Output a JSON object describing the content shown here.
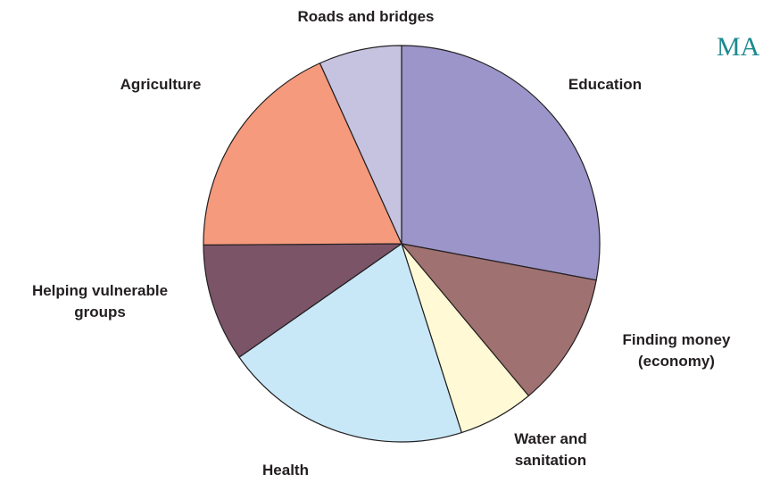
{
  "chart_data": {
    "type": "pie",
    "start_angle_deg": 0,
    "direction": "clockwise",
    "slices": [
      {
        "label": "Education",
        "lines": [
          "Education"
        ],
        "value": 28.5,
        "color": "#9b95c9"
      },
      {
        "label": "Finding money (economy)",
        "lines": [
          "Finding money",
          "(economy)"
        ],
        "value": 11.2,
        "color": "#a07171"
      },
      {
        "label": "Water and sanitation",
        "lines": [
          "Water and",
          "sanitation"
        ],
        "value": 6.3,
        "color": "#fffad5"
      },
      {
        "label": "Health",
        "lines": [
          "Health"
        ],
        "value": 20.6,
        "color": "#c8e8f8"
      },
      {
        "label": "Helping vulnerable groups",
        "lines": [
          "Helping vulnerable",
          "groups"
        ],
        "value": 9.8,
        "color": "#7b5468"
      },
      {
        "label": "Agriculture",
        "lines": [
          "Agriculture"
        ],
        "value": 18.7,
        "color": "#f59a7c"
      },
      {
        "label": "Roads and bridges",
        "lines": [
          "Roads and bridges"
        ],
        "value": 6.9,
        "color": "#c6c3e1"
      }
    ]
  },
  "corner_mark": {
    "text": "MA",
    "color": "#1b8a8f"
  }
}
